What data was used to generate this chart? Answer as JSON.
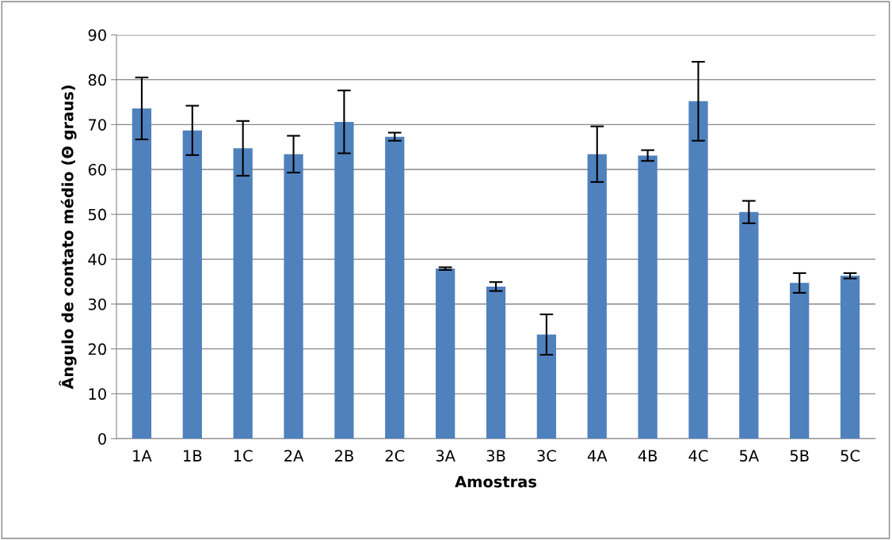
{
  "chart_data": {
    "type": "bar",
    "xlabel": "Amostras",
    "ylabel": "Ângulo de contato médio (Θ graus)",
    "categories": [
      "1A",
      "1B",
      "1C",
      "2A",
      "2B",
      "2C",
      "3A",
      "3B",
      "3C",
      "4A",
      "4B",
      "4C",
      "5A",
      "5B",
      "5C"
    ],
    "values": [
      73.6,
      68.7,
      64.7,
      63.4,
      70.6,
      67.3,
      37.9,
      33.9,
      23.2,
      63.4,
      63.1,
      75.2,
      50.5,
      34.7,
      36.3
    ],
    "errors": [
      6.9,
      5.5,
      6.1,
      4.1,
      7.0,
      0.9,
      0.3,
      1.0,
      4.5,
      6.2,
      1.2,
      8.8,
      2.5,
      2.2,
      0.6
    ],
    "color": "#4f81bd",
    "ylim": [
      0,
      90
    ],
    "yticks": [
      0,
      10,
      20,
      30,
      40,
      50,
      60,
      70,
      80,
      90
    ],
    "grid": "y",
    "legend": false
  }
}
